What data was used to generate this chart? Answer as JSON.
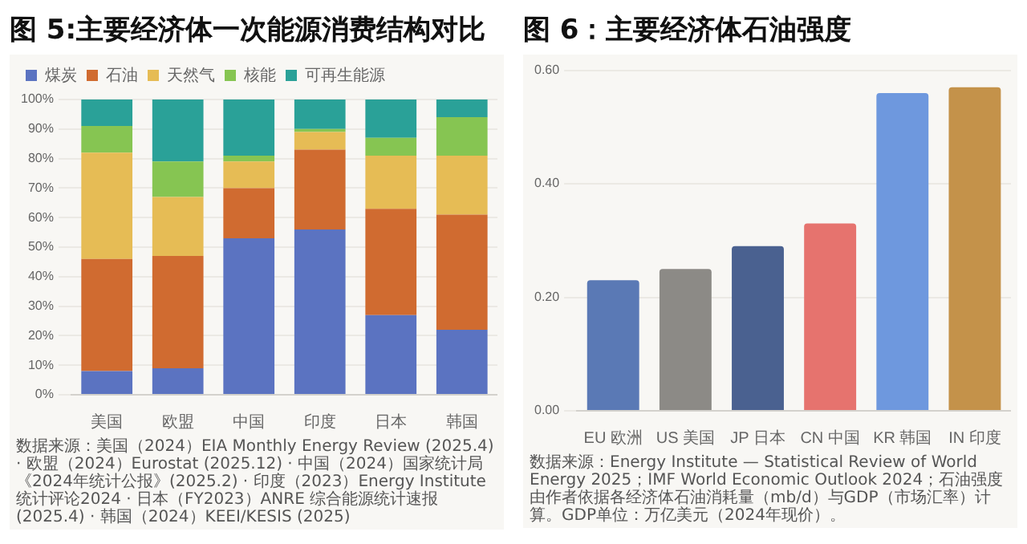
{
  "chart_data": [
    {
      "type": "bar",
      "title": "图 5:主要经济体一次能源消费结构对比",
      "stacked": true,
      "categories": [
        "美国",
        "欧盟",
        "中国",
        "印度",
        "日本",
        "韩国"
      ],
      "series": [
        {
          "name": "煤炭",
          "color": "#5b73c1",
          "values": [
            8,
            9,
            53,
            56,
            27,
            22
          ]
        },
        {
          "name": "石油",
          "color": "#d06b30",
          "values": [
            38,
            38,
            17,
            27,
            36,
            39
          ]
        },
        {
          "name": "天然气",
          "color": "#e6bc55",
          "values": [
            36,
            20,
            9,
            6,
            18,
            20
          ]
        },
        {
          "name": "核能",
          "color": "#86c552",
          "values": [
            9,
            12,
            2,
            1,
            6,
            13
          ]
        },
        {
          "name": "可再生能源",
          "color": "#2aa198",
          "values": [
            9,
            21,
            19,
            10,
            13,
            6
          ]
        }
      ],
      "ylim": [
        0,
        100
      ],
      "yticks": [
        {
          "value": 0,
          "label": "0%"
        },
        {
          "value": 10,
          "label": "10%"
        },
        {
          "value": 20,
          "label": "20%"
        },
        {
          "value": 30,
          "label": "30%"
        },
        {
          "value": 40,
          "label": "40%"
        },
        {
          "value": 50,
          "label": "50%"
        },
        {
          "value": 60,
          "label": "60%"
        },
        {
          "value": 70,
          "label": "70%"
        },
        {
          "value": 80,
          "label": "80%"
        },
        {
          "value": 90,
          "label": "90%"
        },
        {
          "value": 100,
          "label": "100%"
        }
      ],
      "grid": "y",
      "legend": "top left",
      "annotations": [
        "数据来源：美国（2024）EIA Monthly Energy Review (2025.4) · 欧盟（2024）Eurostat (2025.12) · 中国（2024）国家统计局《2024年统计公报》(2025.2) · 印度（2023）Energy Institute 统计评论2024 · 日本（FY2023）ANRE 综合能源统计速报 (2025.4) · 韩国（2024）KEEI/KESIS (2025)"
      ]
    },
    {
      "type": "bar",
      "title": "图 6：主要经济体石油强度",
      "categories": [
        "EU 欧洲",
        "US 美国",
        "JP 日本",
        "CN 中国",
        "KR 韩国",
        "IN 印度"
      ],
      "values": [
        0.23,
        0.25,
        0.29,
        0.33,
        0.56,
        0.57
      ],
      "colors": [
        "#5a79b5",
        "#8c8a86",
        "#4a6190",
        "#e6736e",
        "#6e98de",
        "#c4924a"
      ],
      "ylim": [
        0,
        0.6
      ],
      "yticks": [
        {
          "value": 0,
          "label": "0.00"
        },
        {
          "value": 0.2,
          "label": "0.20"
        },
        {
          "value": 0.4,
          "label": "0.40"
        },
        {
          "value": 0.6,
          "label": "0.60"
        }
      ],
      "grid": "y",
      "annotations": [
        "数据来源：Energy Institute — Statistical Review of World Energy 2025；IMF World Economic Outlook 2024；石油强度由作者依据各经济体石油消耗量（mb/d）与GDP（市场汇率）计算。GDP单位：万亿美元（2024年现价）。"
      ]
    }
  ]
}
